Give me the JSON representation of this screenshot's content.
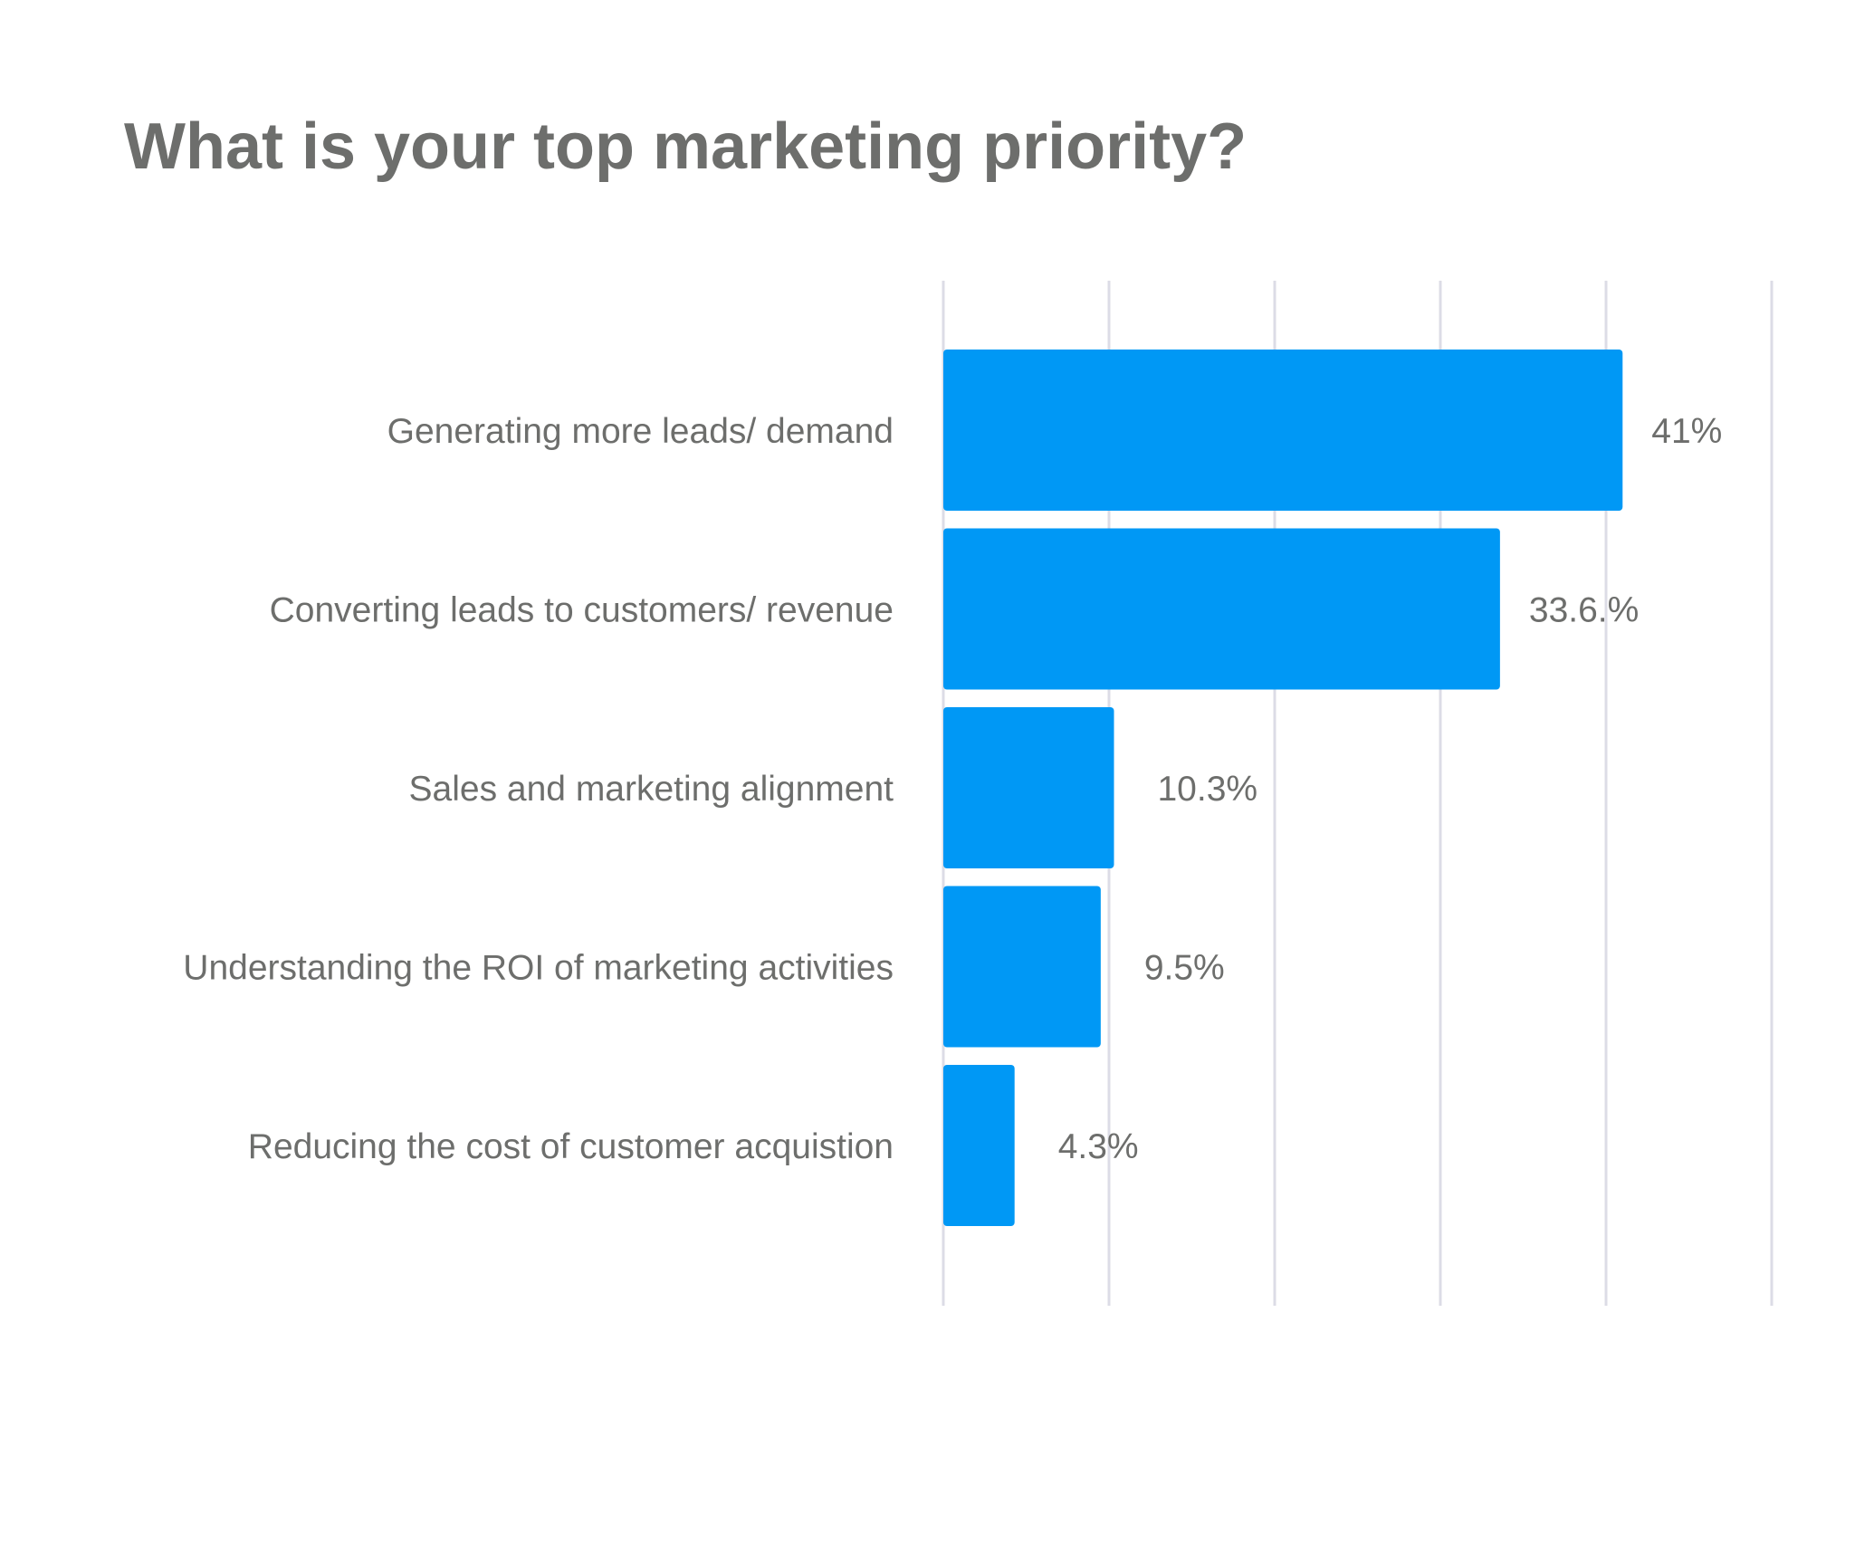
{
  "chart_data": {
    "type": "bar",
    "orientation": "horizontal",
    "title": "What is your top marketing priority?",
    "categories": [
      "Generating more leads/ demand",
      "Converting leads to customers/ revenue",
      "Sales and marketing alignment",
      "Understanding the ROI of marketing activities",
      "Reducing the cost of customer acquistion"
    ],
    "values": [
      41,
      33.6,
      10.3,
      9.5,
      4.3
    ],
    "value_labels": [
      "41%",
      "33.6.%",
      "10.3%",
      "9.5%",
      "4.3%"
    ],
    "xlim": [
      0,
      50
    ],
    "grid": true,
    "legend": "none",
    "bar_color": "#0098f5",
    "grid_color": "#dcdce6",
    "text_color": "#6d6e6c"
  }
}
